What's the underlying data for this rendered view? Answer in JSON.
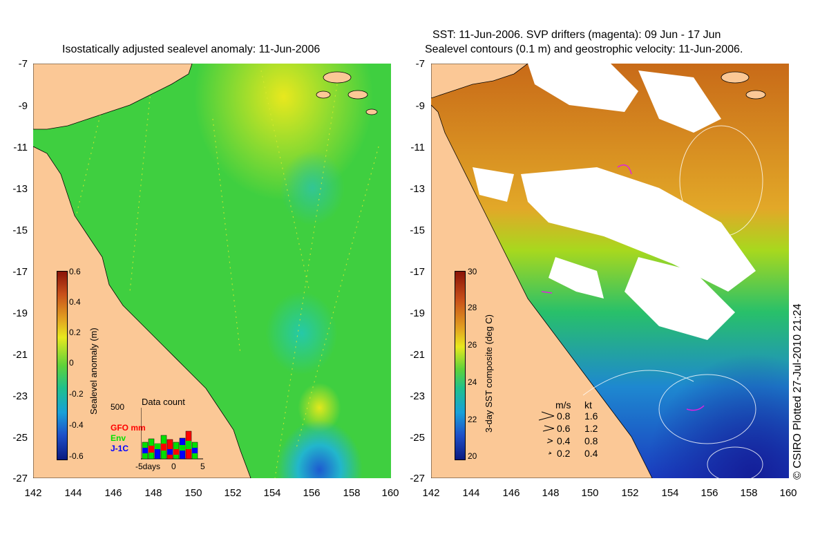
{
  "left_map": {
    "title": "Isostatically adjusted sealevel anomaly: 11-Jun-2006",
    "y_ticks": [
      "-7",
      "-9",
      "-11",
      "-13",
      "-15",
      "-17",
      "-19",
      "-21",
      "-23",
      "-25",
      "-27"
    ],
    "x_ticks": [
      "142",
      "144",
      "146",
      "148",
      "150",
      "152",
      "154",
      "156",
      "158",
      "160"
    ],
    "colorbar": {
      "label": "Sealevel anomaly (m)",
      "ticks": [
        "0.6",
        "0.4",
        "0.2",
        "0",
        "-0.2",
        "-0.4",
        "-0.6"
      ],
      "range": [
        -0.6,
        0.6
      ]
    },
    "data_count": {
      "title": "Data count",
      "max_label": "500",
      "legend": [
        {
          "label": "GFO mm",
          "color": "#ff0000"
        },
        {
          "label": "Env",
          "color": "#00ff00"
        },
        {
          "label": "J-1C",
          "color": "#0000ff"
        }
      ],
      "x_start": "-5days",
      "x_mid": "0",
      "x_end": "5"
    }
  },
  "right_map": {
    "title_line1": "SST: 11-Jun-2006. SVP drifters (magenta): 09 Jun - 17 Jun",
    "title_line2": "Sealevel contours (0.1 m) and geostrophic velocity: 11-Jun-2006.",
    "y_ticks": [
      "-7",
      "-9",
      "-11",
      "-13",
      "-15",
      "-17",
      "-19",
      "-21",
      "-23",
      "-25",
      "-27"
    ],
    "x_ticks": [
      "142",
      "144",
      "146",
      "148",
      "150",
      "152",
      "154",
      "156",
      "158",
      "160"
    ],
    "colorbar": {
      "label": "3-day SST composite (deg C)",
      "ticks": [
        "30",
        "28",
        "26",
        "24",
        "22",
        "20"
      ],
      "range": [
        20,
        30
      ]
    },
    "velocity_legend": {
      "header_ms": "m/s",
      "header_kt": "kt",
      "rows": [
        {
          "ms": "0.8",
          "kt": "1.6"
        },
        {
          "ms": "0.6",
          "kt": "1.2"
        },
        {
          "ms": "0.4",
          "kt": "0.8"
        },
        {
          "ms": "0.2",
          "kt": "0.4"
        }
      ]
    },
    "credit": "© CSIRO Plotted 27-Jul-2010 21:24"
  },
  "colors": {
    "land": "#fbc896",
    "sea_base": "#3ccf3a",
    "sst_warm": "#d46a10",
    "sst_mid": "#a0d81e",
    "sst_cool": "#1e5ad0"
  }
}
